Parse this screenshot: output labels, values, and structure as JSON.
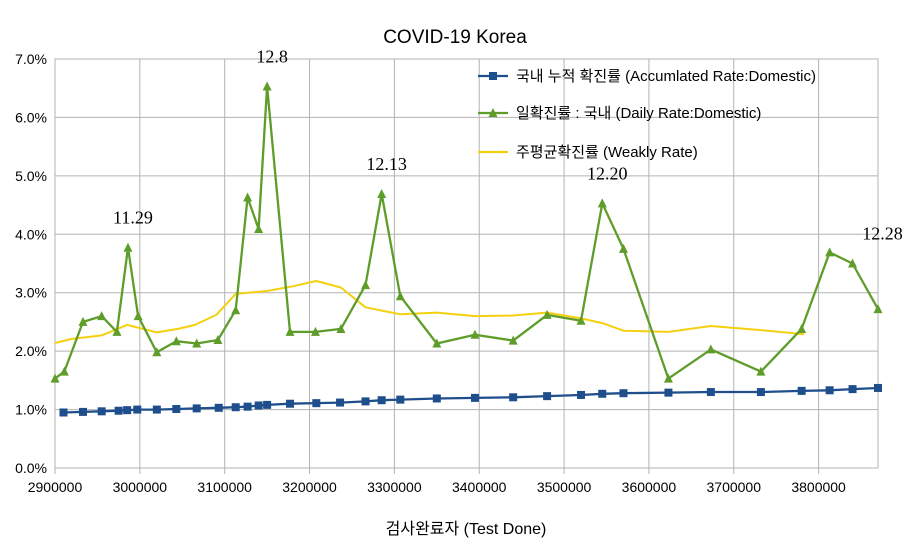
{
  "chart_data": {
    "type": "line",
    "title": "COVID-19 Korea",
    "xlabel": "검사완료자 (Test Done)",
    "ylabel": "",
    "xlim": [
      2900000,
      3870000
    ],
    "ylim": [
      0,
      0.07
    ],
    "x_ticks": [
      2900000,
      3000000,
      3100000,
      3200000,
      3300000,
      3400000,
      3500000,
      3600000,
      3700000,
      3800000
    ],
    "x_tick_labels": [
      "2900000",
      "3000000",
      "3100000",
      "3200000",
      "3300000",
      "3400000",
      "3500000",
      "3600000",
      "3700000",
      "3800000"
    ],
    "y_ticks": [
      0,
      0.01,
      0.02,
      0.03,
      0.04,
      0.05,
      0.06,
      0.07
    ],
    "y_tick_labels": [
      "0.0%",
      "1.0%",
      "2.0%",
      "3.0%",
      "4.0%",
      "5.0%",
      "6.0%",
      "7.0%"
    ],
    "grid": true,
    "legend_position": "top-right",
    "series": [
      {
        "name": "국내 누적 확진률 (Accumlated Rate:Domestic)",
        "color": "#1f4e8c",
        "marker": "square",
        "x": [
          2910000,
          2933000,
          2955000,
          2975000,
          2985000,
          2997000,
          3020000,
          3043000,
          3067000,
          3093000,
          3113000,
          3127000,
          3140000,
          3150000,
          3177000,
          3208000,
          3236000,
          3266000,
          3285000,
          3307000,
          3350000,
          3395000,
          3440000,
          3480000,
          3520000,
          3545000,
          3570000,
          3623000,
          3673000,
          3732000,
          3780000,
          3813000,
          3840000,
          3870000
        ],
        "y": [
          0.0095,
          0.0096,
          0.0097,
          0.0098,
          0.0099,
          0.01,
          0.01,
          0.0101,
          0.0102,
          0.0103,
          0.0104,
          0.0105,
          0.0107,
          0.0108,
          0.011,
          0.0111,
          0.0112,
          0.0114,
          0.0116,
          0.0117,
          0.0119,
          0.012,
          0.0121,
          0.0123,
          0.0125,
          0.0127,
          0.0128,
          0.0129,
          0.013,
          0.013,
          0.0132,
          0.0133,
          0.0135,
          0.0137
        ]
      },
      {
        "name": "일확진률 : 국내 (Daily Rate:Domestic)",
        "color": "#5f9d2a",
        "marker": "triangle",
        "x": [
          2900000,
          2911000,
          2933000,
          2955000,
          2973000,
          2986000,
          2998000,
          3020000,
          3043000,
          3067000,
          3092000,
          3113000,
          3127000,
          3140000,
          3150000,
          3177000,
          3207000,
          3237000,
          3266000,
          3285000,
          3307000,
          3350000,
          3395000,
          3440000,
          3480000,
          3520000,
          3545000,
          3570000,
          3623000,
          3673000,
          3732000,
          3780000,
          3813000,
          3840000,
          3870000
        ],
        "y": [
          0.0153,
          0.0165,
          0.025,
          0.026,
          0.0233,
          0.0377,
          0.026,
          0.0198,
          0.0217,
          0.0213,
          0.0219,
          0.027,
          0.0463,
          0.0409,
          0.0653,
          0.0233,
          0.0233,
          0.0238,
          0.0313,
          0.0469,
          0.0294,
          0.0213,
          0.0228,
          0.0218,
          0.0262,
          0.0252,
          0.0453,
          0.0375,
          0.0153,
          0.0203,
          0.0165,
          0.0238,
          0.0369,
          0.035,
          0.0272
        ]
      },
      {
        "name": "주평균확진률 (Weakly Rate)",
        "color": "#f4d00f",
        "marker": "none",
        "x": [
          2900000,
          2920000,
          2955000,
          2985000,
          3020000,
          3045000,
          3065000,
          3090000,
          3113000,
          3150000,
          3180000,
          3208000,
          3237000,
          3266000,
          3307000,
          3350000,
          3395000,
          3440000,
          3480000,
          3520000,
          3545000,
          3570000,
          3623000,
          3673000,
          3732000,
          3783000
        ],
        "y": [
          0.0214,
          0.0221,
          0.0227,
          0.0245,
          0.0232,
          0.0238,
          0.0245,
          0.0262,
          0.0298,
          0.0303,
          0.0311,
          0.032,
          0.0309,
          0.0275,
          0.0263,
          0.0266,
          0.026,
          0.0261,
          0.0266,
          0.0256,
          0.0248,
          0.0235,
          0.0233,
          0.0243,
          0.0236,
          0.0229
        ]
      }
    ],
    "annotations": [
      {
        "text": "11.29",
        "x": 2986000,
        "y": 0.0377
      },
      {
        "text": "12.8",
        "x": 3150000,
        "y": 0.0653
      },
      {
        "text": "12.13",
        "x": 3285000,
        "y": 0.0469
      },
      {
        "text": "12.20",
        "x": 3545000,
        "y": 0.0453
      },
      {
        "text": "12.28",
        "x": 3840000,
        "y": 0.035
      }
    ]
  }
}
